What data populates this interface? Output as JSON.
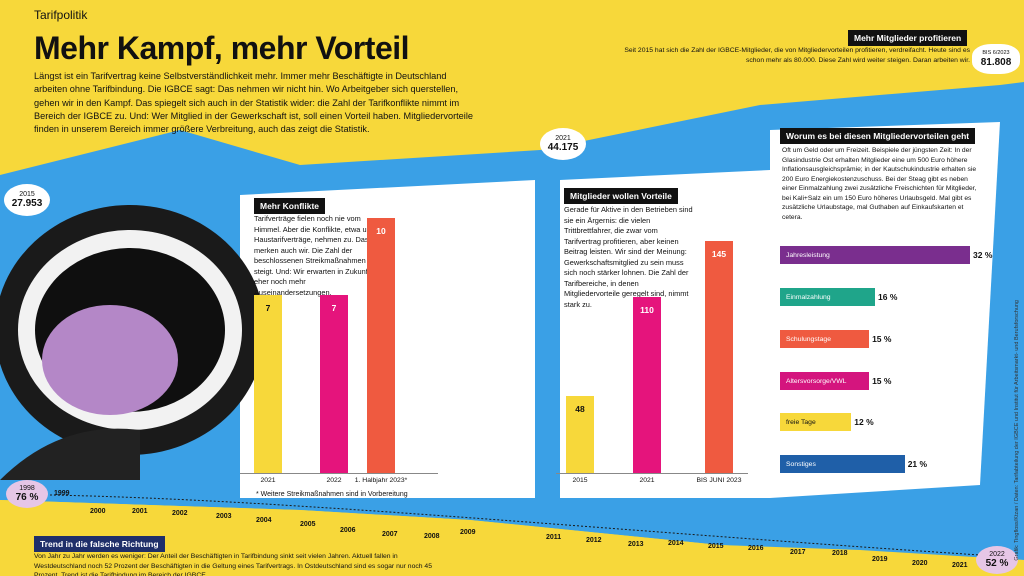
{
  "section_tag": "Tarifpolitik",
  "headline": "Mehr Kampf, mehr Vorteil",
  "intro": "Längst ist ein Tarifvertrag keine Selbstverständlichkeit mehr. Immer mehr Beschäftigte in Deutschland arbeiten ohne Tarifbindung. Die IGBCE sagt: Das nehmen wir nicht hin. Wo Arbeitgeber sich querstellen, gehen wir in den Kampf. Das spiegelt sich auch in der Statistik wider: die Zahl der Tarifkonflikte nimmt im Bereich der IGBCE zu. Und: Wer Mitglied in der Gewerkschaft ist, soll einen Vorteil haben. Mitgliedervorteile finden in unserem Bereich immer größere Verbreitung, auch das zeigt die Statistik.",
  "members_box": {
    "title": "Mehr Mitglieder profitieren",
    "text": "Seit 2015 hat sich die Zahl der IGBCE-Mitglieder, die von Mitgliedervorteilen profitieren, verdreifacht. Heute sind es schon mehr als 80.000. Diese Zahl wird weiter steigen. Daran arbeiten wir."
  },
  "bubbles": {
    "b2015": {
      "label": "2015",
      "value": "27.953"
    },
    "b2021": {
      "label": "2021",
      "value": "44.175"
    },
    "b2023": {
      "label": "BIS 6/2023",
      "value": "81.808"
    },
    "b1998": {
      "label": "1998",
      "value": "76 %"
    },
    "b2022": {
      "label": "2022",
      "value": "52 %"
    }
  },
  "konflikte": {
    "title": "Mehr Konflikte",
    "text": "Tarifverträge fielen noch nie vom Himmel. Aber die Konflikte, etwa um Haustarifverträge, nehmen zu. Das merken auch wir. Die Zahl der beschlossenen Streikmaßnahmen steigt. Und: Wir erwarten in Zukunft eher noch mehr Auseinandersetzungen.",
    "footnote": "* Weitere Streikmaßnahmen sind in Vorbereitung",
    "colors": [
      "#f7d83a",
      "#e5147c",
      "#ef5a40"
    ]
  },
  "vorteile": {
    "title": "Mitglieder wollen Vorteile",
    "text": "Gerade für Aktive in den Betrieben sind sie ein Ärgernis: die vielen Trittbrettfahrer, die zwar vom Tarifvertrag profitieren, aber keinen Beitrag leisten. Wir sind der Meinung: Gewerkschaftsmitglied zu sein muss sich noch stärker lohnen. Die Zahl der Tarifbereiche, in denen Mitgliedervorteile geregelt sind, nimmt stark zu.",
    "colors": [
      "#f7d83a",
      "#e5147c",
      "#ef5a40"
    ]
  },
  "worum": {
    "title": "Worum es bei diesen Mitgliedervorteilen geht",
    "text": "Oft um Geld oder um Freizeit. Beispiele der jüngsten Zeit: In der Glasindustrie Ost erhalten Mitglieder eine um 500 Euro höhere Inflationsausgleichsprämie; in der Kautschukindustrie erhalten sie 200 Euro Energiekostenzuschuss. Bei der Steag gibt es neben einer Einmalzahlung zwei zusätzliche Freischichten für Mitglieder, bei Kali+Salz ein um 150 Euro höheres Urlaubsgeld. Mal gibt es zusätzliche Urlaubstage, mal Guthaben auf Einkaufskarten et cetera."
  },
  "chart_data": [
    {
      "type": "bar",
      "title": "Mehr Konflikte",
      "categories": [
        "2021",
        "2022",
        "1. Halbjahr 2023*"
      ],
      "values": [
        7,
        7,
        10
      ]
    },
    {
      "type": "bar",
      "title": "Mitglieder wollen Vorteile",
      "categories": [
        "2015",
        "2021",
        "BIS JUNI 2023"
      ],
      "values": [
        48,
        110,
        145
      ]
    },
    {
      "type": "bar",
      "title": "Worum es bei diesen Mitgliedervorteilen geht",
      "categories": [
        "Jahresleistung",
        "Einmalzahlung",
        "Schulungstage",
        "Altersvorsorge/VWL",
        "freie Tage",
        "Sonstiges"
      ],
      "values": [
        32,
        16,
        15,
        15,
        12,
        21
      ],
      "labels": [
        "32 %",
        "16 %",
        "15 %",
        "15 %",
        "12 %",
        "21 %"
      ],
      "colors": [
        "#7a2e8e",
        "#1fa58a",
        "#ef5a40",
        "#d4157e",
        "#f7d83a",
        "#1f5fa8"
      ]
    },
    {
      "type": "line",
      "title": "Trend in die falsche Richtung",
      "x": [
        "1998",
        "1999",
        "2000",
        "2001",
        "2002",
        "2003",
        "2004",
        "2005",
        "2006",
        "2007",
        "2008",
        "2009",
        "2011",
        "2012",
        "2013",
        "2014",
        "2015",
        "2016",
        "2017",
        "2018",
        "2019",
        "2020",
        "2021",
        "2022"
      ],
      "y_start": 76,
      "y_end": 52
    }
  ],
  "trend": {
    "title": "Trend in die falsche Richtung",
    "text": "Von Jahr zu Jahr werden es weniger: Der Anteil der Beschäftigten in Tarifbindung sinkt seit vielen Jahren. Aktuell fallen in Westdeutschland noch 52 Prozent der Beschäftigten in die Geltung eines Tarifvertrags. In Ostdeutschland sind es sogar nur noch 45 Prozent. Trend ist die Tarifbindung im Bereich der IGBCE ..."
  },
  "credit": "Grafik: Tingfloss/Ktzan / Daten: Tarifabteilung der IGBCE und Institut für Arbeitsmarkt- und Berufsforschung"
}
